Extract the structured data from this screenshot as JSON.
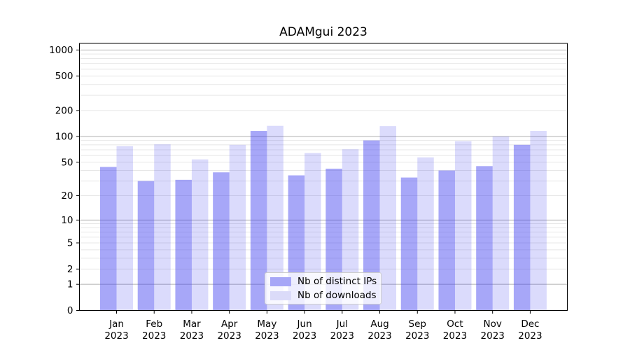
{
  "title": "ADAMgui 2023",
  "chart_data": {
    "type": "bar",
    "title": "ADAMgui 2023",
    "months": [
      "Jan",
      "Feb",
      "Mar",
      "Apr",
      "May",
      "Jun",
      "Jul",
      "Aug",
      "Sep",
      "Oct",
      "Nov",
      "Dec"
    ],
    "year": "2023",
    "series": [
      {
        "name": "Nb of distinct IPs",
        "color": "rgba(64,64,240,0.46)",
        "legend_color": "#a7a7f7",
        "values": [
          44,
          30,
          31,
          38,
          116,
          35,
          42,
          90,
          33,
          40,
          45,
          80
        ]
      },
      {
        "name": "Nb of downloads",
        "color": "rgba(64,64,240,0.19)",
        "legend_color": "#dbdbf9",
        "values": [
          77,
          81,
          54,
          80,
          133,
          64,
          71,
          132,
          57,
          88,
          100,
          116
        ]
      }
    ],
    "y_ticks": [
      0,
      1,
      2,
      5,
      10,
      20,
      50,
      100,
      200,
      500,
      1000
    ],
    "y_scale": "log10(value+1)",
    "ylim": [
      0,
      1190
    ],
    "grid": true,
    "legend_position": "lower center"
  }
}
